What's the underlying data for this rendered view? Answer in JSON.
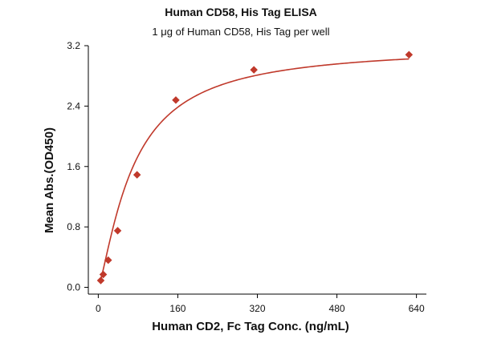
{
  "chart_data": {
    "type": "scatter",
    "title": "Human CD58, His Tag ELISA",
    "subtitle": "1 μg of Human CD58, His Tag per well",
    "xlabel": "Human CD2, Fc Tag Conc. (ng/mL)",
    "ylabel": "Mean Abs.(OD450)",
    "xlim": [
      -20,
      660
    ],
    "ylim": [
      -0.09,
      3.2
    ],
    "xticks": [
      0,
      160,
      320,
      480,
      640
    ],
    "xtick_labels": [
      "0",
      "160",
      "320",
      "480",
      "640"
    ],
    "yticks": [
      0.0,
      0.8,
      1.6,
      2.4,
      3.2
    ],
    "ytick_labels": [
      "0.0",
      "0.8",
      "1.6",
      "2.4",
      "3.2"
    ],
    "grid": false,
    "legend": "none",
    "marker": "diamond",
    "color": "#c0392b",
    "series": [
      {
        "x": [
          5,
          10,
          20,
          39,
          78,
          156,
          313,
          625
        ],
        "y": [
          0.09,
          0.17,
          0.36,
          0.75,
          1.49,
          2.48,
          2.88,
          3.08
        ]
      }
    ],
    "fit": {
      "type": "4PL",
      "bottom": 0.0,
      "top": 3.2,
      "ec50": 70,
      "hill": 1.3
    }
  }
}
